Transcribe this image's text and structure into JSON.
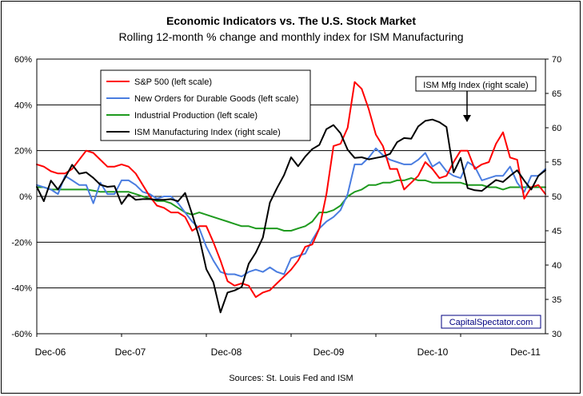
{
  "chart_data": {
    "type": "line",
    "title": "Economic Indicators vs. The U.S. Stock Market",
    "subtitle": "Rolling 12-month % change and monthly index for ISM Manufacturing",
    "source": "Sources: St. Louis Fed and ISM",
    "watermark": "CapitalSpectator.com",
    "annotation": "ISM Mfg Index (right scale)",
    "x_labels": [
      "Dec-06",
      "Dec-07",
      "Dec-08",
      "Dec-09",
      "Dec-10",
      "Dec-11"
    ],
    "x_range": [
      "2006-12",
      "2011-12"
    ],
    "y_left": {
      "min": -60,
      "max": 60,
      "step": 20,
      "unit": "%",
      "tick_labels": [
        "-60%",
        "-40%",
        "-20%",
        "0%",
        "20%",
        "40%",
        "60%"
      ]
    },
    "y_right": {
      "min": 30,
      "max": 70,
      "step": 5,
      "tick_labels": [
        "30",
        "35",
        "40",
        "45",
        "50",
        "55",
        "60",
        "65",
        "70"
      ]
    },
    "grid": "horizontal",
    "legend_position": "top-left",
    "series": [
      {
        "name": "S&P 500 (left scale)",
        "axis": "left",
        "color": "#ff0000",
        "values": [
          14,
          13,
          11,
          10,
          10,
          12,
          16,
          20,
          19,
          16,
          13,
          13,
          14,
          13,
          10,
          5,
          0,
          -4,
          -5,
          -7,
          -7,
          -9,
          -15,
          -13,
          -13,
          -20,
          -28,
          -37,
          -39,
          -38,
          -39,
          -44,
          -42,
          -41,
          -38,
          -35,
          -32,
          -28,
          -22,
          -21,
          -14,
          1,
          22,
          23,
          30,
          50,
          47,
          38,
          27,
          22,
          12,
          12,
          3,
          6,
          9,
          15,
          12,
          8,
          9,
          15,
          20,
          20,
          12,
          14,
          15,
          23,
          28,
          17,
          16,
          -1,
          4,
          5,
          1
        ]
      },
      {
        "name": "New Orders for Durable Goods (left scale)",
        "axis": "left",
        "color": "#4a7de0",
        "values": [
          5,
          4,
          3,
          1,
          9,
          7,
          5,
          5,
          -3,
          6,
          1,
          1,
          7,
          7,
          5,
          2,
          1,
          -1,
          0,
          0,
          -3,
          -7,
          -11,
          -14,
          -22,
          -28,
          -33,
          -34,
          -34,
          -35,
          -33,
          -32,
          -33,
          -31,
          -33,
          -34,
          -27,
          -26,
          -25,
          -19,
          -14,
          -11,
          -9,
          -6,
          1,
          14,
          14,
          17,
          21,
          18,
          16,
          15,
          14,
          14,
          16,
          19,
          13,
          15,
          11,
          9,
          8,
          15,
          13,
          7,
          8,
          9,
          9,
          13,
          6,
          2,
          9,
          9,
          12
        ]
      },
      {
        "name": "Industrial Production (left scale)",
        "axis": "left",
        "color": "#1e9a1e",
        "values": [
          4,
          4,
          3,
          3,
          3,
          3,
          3,
          3,
          2.5,
          2,
          2,
          2,
          2,
          2,
          1,
          0,
          -1,
          -2,
          -2,
          -3,
          -5,
          -7,
          -8,
          -7,
          -8,
          -9,
          -10,
          -11,
          -12,
          -13,
          -13,
          -14,
          -14,
          -14,
          -14,
          -15,
          -15,
          -14,
          -13,
          -11,
          -7,
          -7,
          -6,
          -4,
          0,
          2,
          3,
          5,
          5,
          6,
          6,
          7,
          7,
          8,
          7,
          7,
          6,
          6,
          6,
          6,
          6,
          5,
          5,
          5,
          4,
          4,
          3,
          4,
          4,
          4,
          4,
          4,
          4
        ]
      },
      {
        "name": "ISM Manufacturing Index (right scale)",
        "axis": "right",
        "color": "#000000",
        "values": [
          51.4,
          49.3,
          52.3,
          51.0,
          52.7,
          54.6,
          53.3,
          53.5,
          52.7,
          51.7,
          51.4,
          51.5,
          48.9,
          50.3,
          49.5,
          49.6,
          49.6,
          49.5,
          49.5,
          49.6,
          49.3,
          50.5,
          47.4,
          44.0,
          39.4,
          37.5,
          33.1,
          36.0,
          36.3,
          36.8,
          40.2,
          41.8,
          44.0,
          49.1,
          51.2,
          53.1,
          55.7,
          54.4,
          55.8,
          56.9,
          57.5,
          59.8,
          60.4,
          59.2,
          56.8,
          55.6,
          55.7,
          55.4,
          55.6,
          55.8,
          56.2,
          57.9,
          58.5,
          58.4,
          60.2,
          61.0,
          61.2,
          60.8,
          60.1,
          53.5,
          55.6,
          51.2,
          50.9,
          50.8,
          51.6,
          52.4,
          52.1,
          53.0,
          53.8,
          52.3,
          51.0,
          53.0,
          53.8
        ]
      }
    ]
  }
}
